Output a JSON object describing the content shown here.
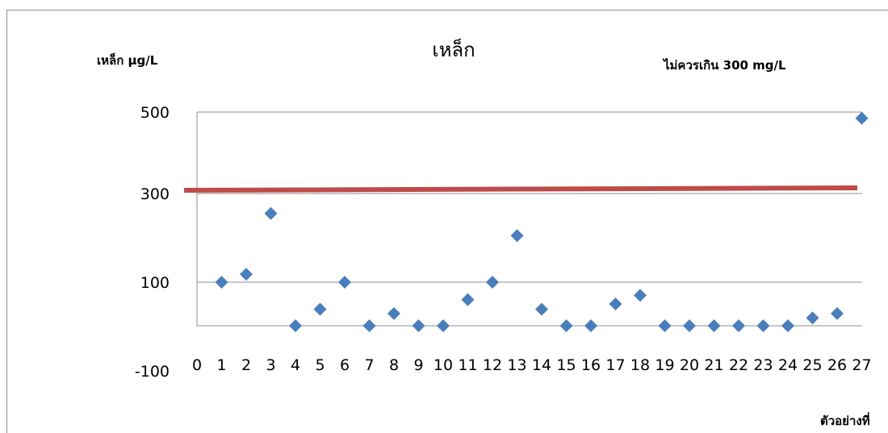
{
  "chart_data": {
    "type": "scatter",
    "title": "เหล็ก",
    "ylabel": "เหล็ก  µg/L",
    "xlabel": "ตัวอย่างที่",
    "annotation": "ไม่ควรเกิน 300 mg/L",
    "y_ticks": [
      "500",
      "300",
      "100",
      "-100"
    ],
    "x_ticks": [
      "0",
      "1",
      "2",
      "3",
      "4",
      "5",
      "6",
      "7",
      "8",
      "9",
      "10",
      "11",
      "12",
      "13",
      "14",
      "15",
      "16",
      "17",
      "18",
      "19",
      "20",
      "21",
      "22",
      "23",
      "24",
      "25",
      "26",
      "27"
    ],
    "marker_color": "#4a7ebb",
    "limit_line": {
      "value": 300,
      "color": "#be4b48"
    },
    "x": [
      1,
      2,
      3,
      4,
      5,
      6,
      7,
      8,
      9,
      10,
      11,
      12,
      13,
      14,
      15,
      16,
      17,
      18,
      19,
      20,
      21,
      22,
      23,
      24,
      25,
      26,
      27
    ],
    "y": [
      100,
      118,
      255,
      0,
      38,
      100,
      0,
      28,
      0,
      0,
      60,
      100,
      205,
      38,
      0,
      0,
      50,
      70,
      0,
      0,
      0,
      0,
      0,
      0,
      18,
      28,
      485
    ],
    "grid": true
  }
}
